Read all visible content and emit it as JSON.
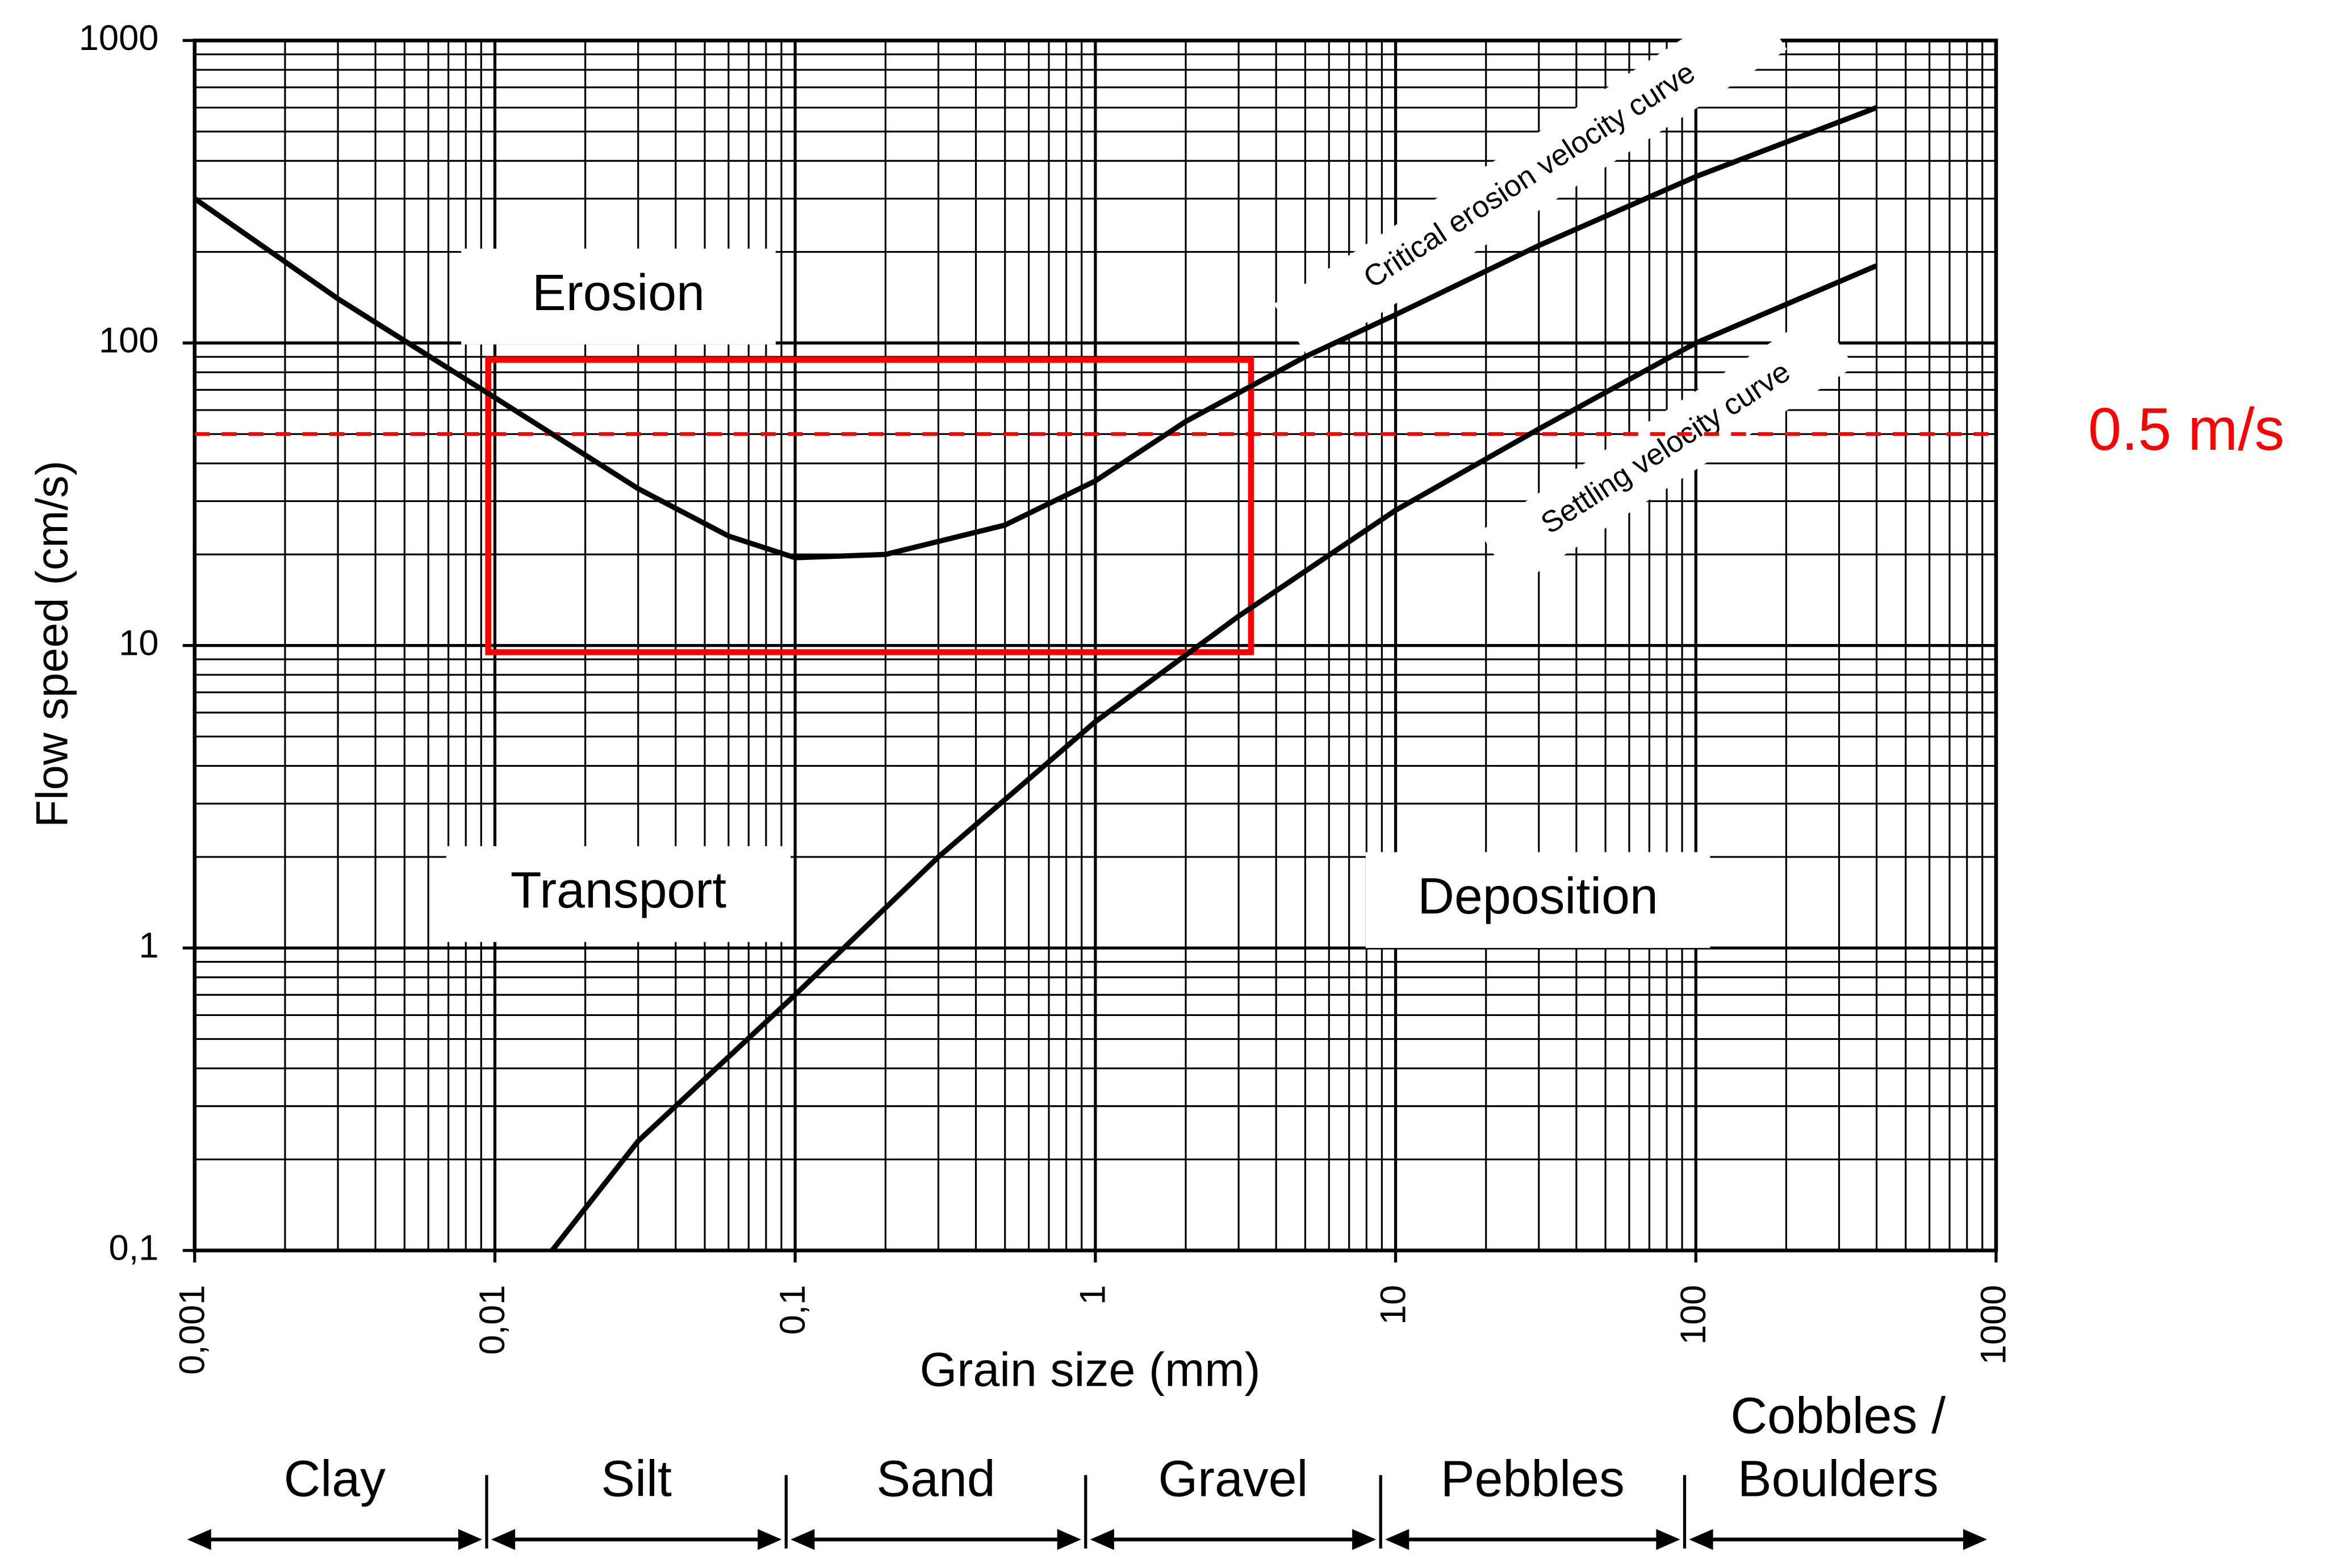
{
  "chart_data": {
    "type": "line",
    "xlabel": "Grain size (mm)",
    "ylabel": "Flow speed (cm/s)",
    "log_x": true,
    "log_y": true,
    "grid": true,
    "minor_grid": true,
    "xlim": [
      0.001,
      1000
    ],
    "ylim": [
      0.1,
      1000
    ],
    "xticks": [
      {
        "value": 0.001,
        "label": "0,001"
      },
      {
        "value": 0.01,
        "label": "0,01"
      },
      {
        "value": 0.1,
        "label": "0,1"
      },
      1,
      10,
      100,
      1000
    ],
    "yticks": [
      {
        "value": 0.1,
        "label": "0,1"
      },
      1,
      10,
      100,
      1000
    ],
    "series": [
      {
        "name": "Critical erosion velocity curve",
        "color": "#000000",
        "x": [
          0.001,
          0.003,
          0.01,
          0.03,
          0.06,
          0.1,
          0.2,
          0.5,
          1,
          2,
          5,
          10,
          30,
          100,
          400
        ],
        "values": [
          300,
          140,
          66,
          33,
          23,
          19.5,
          20,
          25,
          35,
          55,
          90,
          124,
          210,
          355,
          600
        ]
      },
      {
        "name": "Settling velocity curve",
        "color": "#000000",
        "x": [
          0.0155,
          0.03,
          0.1,
          0.3,
          1,
          3,
          10,
          30,
          100,
          400
        ],
        "values": [
          0.1,
          0.23,
          0.7,
          2,
          5.6,
          12.5,
          28,
          52,
          100,
          180
        ]
      }
    ],
    "regions": [
      "Erosion",
      "Transport",
      "Deposition"
    ],
    "highlight_box": {
      "color": "#ff0000",
      "x": [
        0.0095,
        3.3
      ],
      "y": [
        9.5,
        88
      ]
    },
    "reference_line": {
      "value": 50,
      "label": "0.5 m/s",
      "color": "#ff0000"
    },
    "size_classes": [
      {
        "lines": [
          "Clay"
        ]
      },
      {
        "lines": [
          "Silt"
        ]
      },
      {
        "lines": [
          "Sand"
        ]
      },
      {
        "lines": [
          "Gravel"
        ]
      },
      {
        "lines": [
          "Pebbles"
        ]
      },
      {
        "lines": [
          "Cobbles /",
          "Boulders"
        ]
      }
    ]
  }
}
